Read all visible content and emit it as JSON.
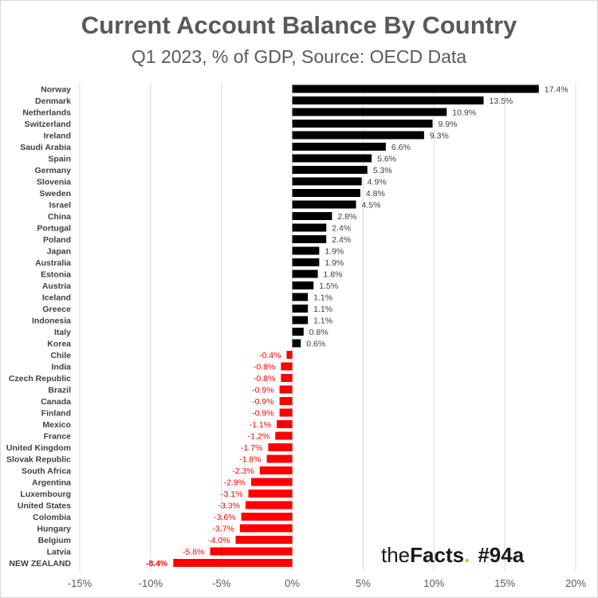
{
  "header": {
    "title": "Current Account Balance By Country",
    "subtitle": "Q1 2023, % of GDP, Source: OECD Data"
  },
  "brand": {
    "the": "the",
    "facts": "Facts",
    "dot": ".",
    "tag": "#94a",
    "dot_color": "#f5a623"
  },
  "colors": {
    "positive": "#000000",
    "negative": "#ff0000",
    "gridline": "#d9d9d9",
    "axis_text": "#595959"
  },
  "chart_data": {
    "type": "bar",
    "orientation": "horizontal",
    "title": "Current Account Balance By Country",
    "subtitle": "Q1 2023, % of GDP, Source: OECD Data",
    "xlabel": "",
    "ylabel": "",
    "xlim": [
      -15,
      20
    ],
    "x_ticks": [
      -15,
      -10,
      -5,
      0,
      5,
      10,
      15,
      20
    ],
    "x_tick_labels": [
      "-15%",
      "-10%",
      "-5%",
      "0%",
      "5%",
      "10%",
      "15%",
      "20%"
    ],
    "grid": true,
    "legend": "none",
    "categories": [
      "Norway",
      "Denmark",
      "Netherlands",
      "Switzerland",
      "Ireland",
      "Saudi Arabia",
      "Spain",
      "Germany",
      "Slovenia",
      "Sweden",
      "Israel",
      "China",
      "Portugal",
      "Poland",
      "Japan",
      "Australia",
      "Estonia",
      "Austria",
      "Iceland",
      "Greece",
      "Indonesia",
      "Italy",
      "Korea",
      "Chile",
      "India",
      "Czech Republic",
      "Brazil",
      "Canada",
      "Finland",
      "Mexico",
      "France",
      "United Kingdom",
      "Slovak Republic",
      "South Africa",
      "Argentina",
      "Luxembourg",
      "United States",
      "Colombia",
      "Hungary",
      "Belgium",
      "Latvia",
      "NEW ZEALAND"
    ],
    "values": [
      17.4,
      13.5,
      10.9,
      9.9,
      9.3,
      6.6,
      5.6,
      5.3,
      4.9,
      4.8,
      4.5,
      2.8,
      2.4,
      2.4,
      1.9,
      1.9,
      1.8,
      1.5,
      1.1,
      1.1,
      1.1,
      0.8,
      0.6,
      -0.4,
      -0.8,
      -0.8,
      -0.9,
      -0.9,
      -0.9,
      -1.1,
      -1.2,
      -1.7,
      -1.8,
      -2.3,
      -2.9,
      -3.1,
      -3.3,
      -3.6,
      -3.7,
      -4.0,
      -5.8,
      -8.4
    ],
    "data_labels": [
      "17.4%",
      "13.5%",
      "10.9%",
      "9.9%",
      "9.3%",
      "6.6%",
      "5.6%",
      "5.3%",
      "4.9%",
      "4.8%",
      "4.5%",
      "2.8%",
      "2.4%",
      "2.4%",
      "1.9%",
      "1.9%",
      "1.8%",
      "1.5%",
      "1.1%",
      "1.1%",
      "1.1%",
      "0.8%",
      "0.6%",
      "-0.4%",
      "-0.8%",
      "-0.8%",
      "-0.9%",
      "-0.9%",
      "-0.9%",
      "-1.1%",
      "-1.2%",
      "-1.7%",
      "-1.8%",
      "-2.3%",
      "-2.9%",
      "-3.1%",
      "-3.3%",
      "-3.6%",
      "-3.7%",
      "-4.0%",
      "-5.8%",
      "-8.4%"
    ],
    "highlighted": "NEW ZEALAND"
  }
}
